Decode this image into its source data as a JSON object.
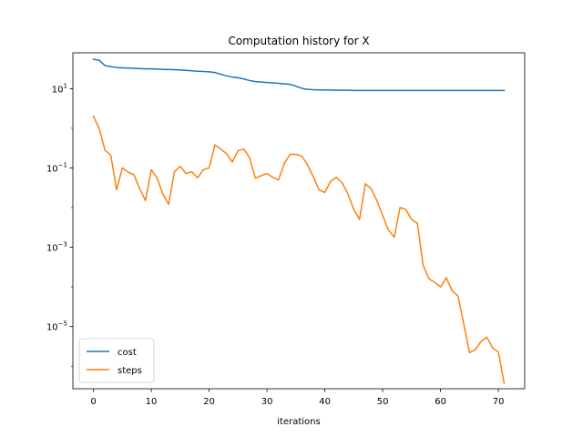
{
  "chart_data": {
    "type": "line",
    "title": "Computation history for X",
    "xlabel": "iterations",
    "ylabel": "",
    "xlim": [
      -3.55,
      74.55
    ],
    "ylim": [
      2.7e-07,
      80
    ],
    "yscale": "log",
    "grid": false,
    "legend_position": "lower-left",
    "x_ticks": [
      0,
      10,
      20,
      30,
      40,
      50,
      60,
      70
    ],
    "x_tick_labels": [
      "0",
      "10",
      "20",
      "30",
      "40",
      "50",
      "60",
      "70"
    ],
    "y_ticks": [
      1e-05,
      0.001,
      0.1,
      10
    ],
    "y_tick_labels": [
      {
        "base": "10",
        "exp": "−5"
      },
      {
        "base": "10",
        "exp": "−3"
      },
      {
        "base": "10",
        "exp": "−1"
      },
      {
        "base": "10",
        "exp": "1"
      }
    ],
    "series": [
      {
        "name": "cost",
        "color": "#1f77b4",
        "x": [
          0,
          1,
          2,
          3,
          4,
          5,
          6,
          7,
          8,
          9,
          10,
          11,
          12,
          13,
          14,
          15,
          16,
          17,
          18,
          19,
          20,
          21,
          22,
          23,
          24,
          25,
          26,
          27,
          28,
          29,
          30,
          31,
          32,
          33,
          34,
          35,
          36,
          37,
          38,
          39,
          40,
          41,
          42,
          43,
          44,
          45,
          46,
          47,
          48,
          49,
          50,
          51,
          52,
          53,
          54,
          55,
          56,
          57,
          58,
          59,
          60,
          61,
          62,
          63,
          64,
          65,
          66,
          67,
          68,
          69,
          70,
          71
        ],
        "values": [
          55,
          52,
          38,
          36,
          34,
          33.5,
          33,
          32.5,
          32,
          31.5,
          31.5,
          31,
          30.5,
          30.2,
          30,
          29.5,
          29,
          28.2,
          27.5,
          27,
          26.5,
          25.5,
          23,
          21,
          19.5,
          18.8,
          17.5,
          16,
          15,
          14.6,
          14.3,
          14,
          13.6,
          13.2,
          12.8,
          11.5,
          10.2,
          9.6,
          9.4,
          9.3,
          9.2,
          9.2,
          9.1,
          9.1,
          9.1,
          9.0,
          9.0,
          9.0,
          9.0,
          9.0,
          9.0,
          9.0,
          9.0,
          9.0,
          9.0,
          9.0,
          9.0,
          9.0,
          9.0,
          9.0,
          9.0,
          9.0,
          9.0,
          9.0,
          9.0,
          9.0,
          9.0,
          9.0,
          9.0,
          9.0,
          9.0,
          9.0
        ]
      },
      {
        "name": "steps",
        "color": "#ff7f0e",
        "x": [
          0,
          1,
          2,
          3,
          4,
          5,
          6,
          7,
          8,
          9,
          10,
          11,
          12,
          13,
          14,
          15,
          16,
          17,
          18,
          19,
          20,
          21,
          22,
          23,
          24,
          25,
          26,
          27,
          28,
          29,
          30,
          31,
          32,
          33,
          34,
          35,
          36,
          37,
          38,
          39,
          40,
          41,
          42,
          43,
          44,
          45,
          46,
          47,
          48,
          49,
          50,
          51,
          52,
          53,
          54,
          55,
          56,
          57,
          58,
          59,
          60,
          61,
          62,
          63,
          64,
          65,
          66,
          67,
          68,
          69,
          70,
          71
        ],
        "values": [
          2.0,
          1.0,
          0.28,
          0.21,
          0.028,
          0.1,
          0.079,
          0.067,
          0.03,
          0.015,
          0.09,
          0.056,
          0.022,
          0.012,
          0.08,
          0.11,
          0.072,
          0.08,
          0.056,
          0.09,
          0.1,
          0.38,
          0.3,
          0.23,
          0.14,
          0.27,
          0.3,
          0.18,
          0.055,
          0.064,
          0.072,
          0.058,
          0.05,
          0.13,
          0.22,
          0.22,
          0.2,
          0.12,
          0.06,
          0.028,
          0.024,
          0.046,
          0.058,
          0.042,
          0.022,
          0.009,
          0.005,
          0.04,
          0.03,
          0.015,
          0.0063,
          0.0027,
          0.0018,
          0.01,
          0.009,
          0.005,
          0.004,
          0.00035,
          0.00016,
          0.00013,
          0.0001,
          0.00017,
          8e-05,
          6e-05,
          1.2e-05,
          2.2e-06,
          2.6e-06,
          4.2e-06,
          5.4e-06,
          2.9e-06,
          2.3e-06,
          3.7e-07
        ]
      }
    ]
  }
}
